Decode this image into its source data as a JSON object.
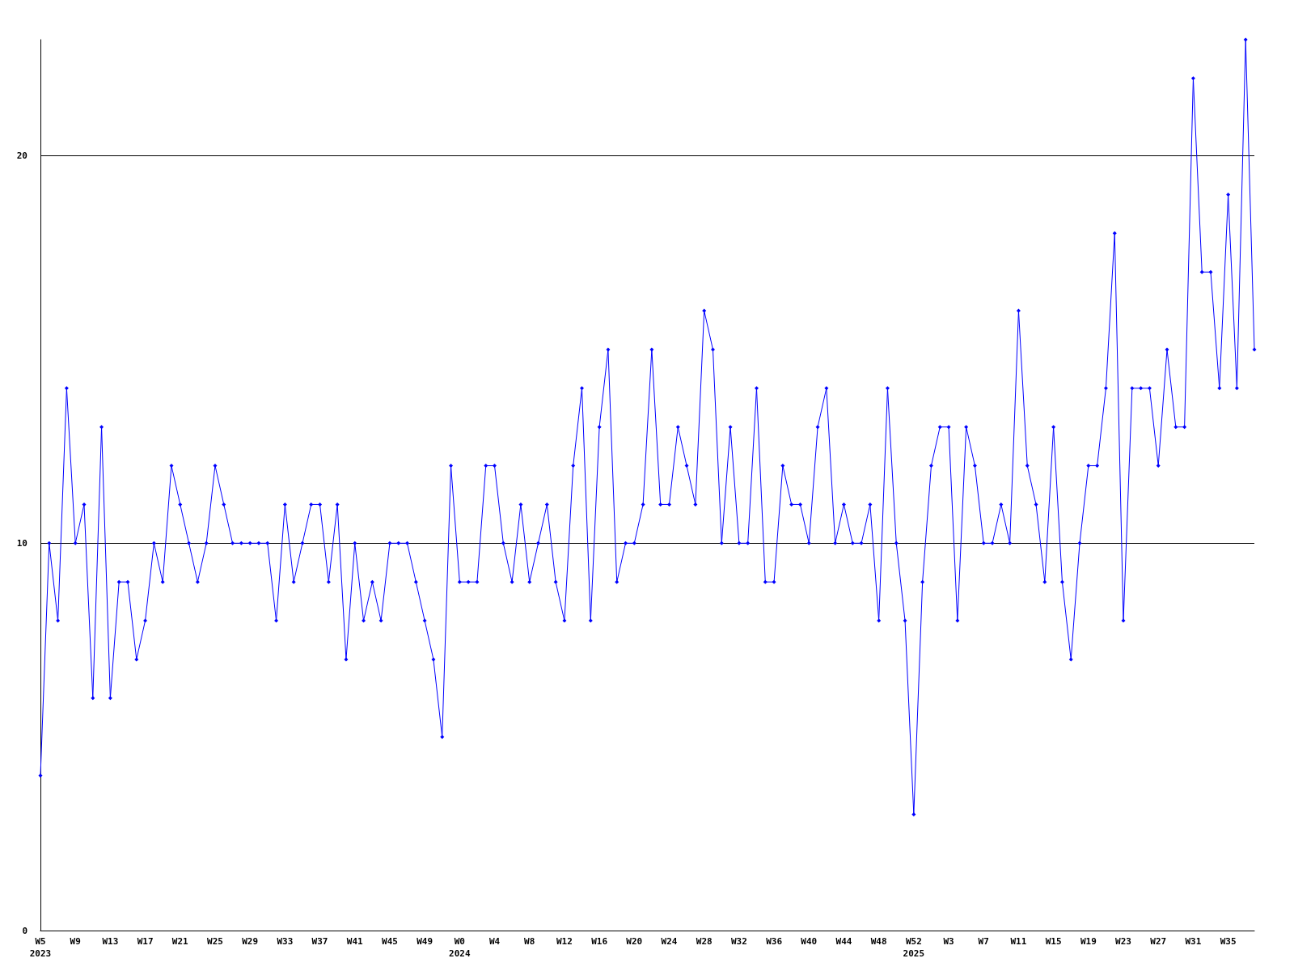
{
  "chart_data": {
    "type": "line",
    "categories": [
      "W5\n2023",
      null,
      null,
      null,
      "W9",
      null,
      null,
      null,
      "W13",
      null,
      null,
      null,
      "W17",
      null,
      null,
      null,
      "W21",
      null,
      null,
      null,
      "W25",
      null,
      null,
      null,
      "W29",
      null,
      null,
      null,
      "W33",
      null,
      null,
      null,
      "W37",
      null,
      null,
      null,
      "W41",
      null,
      null,
      null,
      "W45",
      null,
      null,
      null,
      "W49",
      null,
      null,
      null,
      "W0\n2024",
      null,
      null,
      null,
      "W4",
      null,
      null,
      null,
      "W8",
      null,
      null,
      null,
      "W12",
      null,
      null,
      null,
      "W16",
      null,
      null,
      null,
      "W20",
      null,
      null,
      null,
      "W24",
      null,
      null,
      null,
      "W28",
      null,
      null,
      null,
      "W32",
      null,
      null,
      null,
      "W36",
      null,
      null,
      null,
      "W40",
      null,
      null,
      null,
      "W44",
      null,
      null,
      null,
      "W48",
      null,
      null,
      null,
      "W52\n2025",
      null,
      null,
      null,
      "W3",
      null,
      null,
      null,
      "W7",
      null,
      null,
      null,
      "W11",
      null,
      null,
      null,
      "W15",
      null,
      null,
      null,
      "W19",
      null,
      null,
      null,
      "W23",
      null,
      null,
      null,
      "W27",
      null,
      null,
      null,
      "W31",
      null,
      null,
      null,
      "W35",
      null,
      null,
      null
    ],
    "series": [
      {
        "color": "#0000ff",
        "values": [
          4,
          10,
          8,
          14,
          10,
          11,
          6,
          13,
          6,
          9,
          9,
          7,
          8,
          10,
          9,
          12,
          11,
          10,
          9,
          10,
          12,
          11,
          10,
          10,
          10,
          10,
          10,
          8,
          11,
          9,
          10,
          11,
          11,
          9,
          11,
          7,
          10,
          8,
          9,
          8,
          10,
          10,
          10,
          9,
          8,
          7,
          5,
          12,
          9,
          9,
          9,
          12,
          12,
          10,
          9,
          11,
          9,
          10,
          11,
          9,
          8,
          12,
          14,
          8,
          13,
          15,
          9,
          10,
          10,
          11,
          15,
          11,
          11,
          13,
          12,
          11,
          16,
          15,
          10,
          13,
          10,
          10,
          14,
          9,
          9,
          12,
          11,
          11,
          10,
          13,
          14,
          10,
          11,
          10,
          10,
          11,
          8,
          14,
          10,
          8,
          3,
          9,
          12,
          13,
          13,
          8,
          13,
          12,
          10,
          10,
          11,
          10,
          16,
          12,
          11,
          9,
          13,
          9,
          7,
          10,
          12,
          12,
          14,
          18,
          8,
          14,
          14,
          14,
          12,
          15,
          13,
          13,
          22,
          17,
          17,
          14,
          19,
          14,
          23,
          15
        ]
      }
    ],
    "ylim": [
      0,
      23
    ],
    "yticks": [
      0,
      10,
      20
    ],
    "grid": "y",
    "marker": "diamond",
    "line_style": "solid"
  }
}
